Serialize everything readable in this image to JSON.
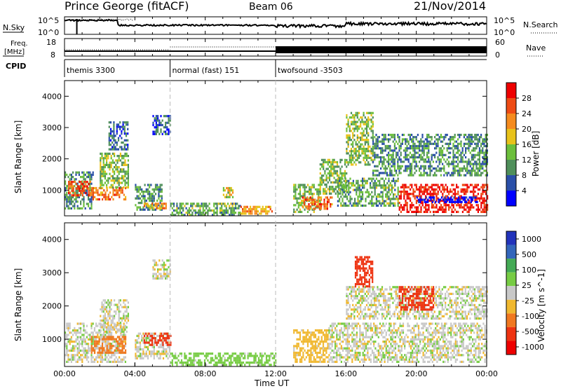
{
  "header": {
    "station": "Prince George (fitACF)",
    "beam": "Beam 06",
    "date": "21/Nov/2014"
  },
  "panels": {
    "nsky": {
      "label": "N.Sky",
      "ticks_left": [
        "10^5",
        "10^0"
      ],
      "ticks_right": [
        "10^5",
        "10^0"
      ],
      "right_label": "N.Search"
    },
    "freq": {
      "label_line1": "Freq.",
      "label_line2": "[MHz]",
      "ticks_left": [
        "18",
        "8"
      ],
      "ticks_right": [
        "60",
        "0"
      ],
      "right_label": "Nave"
    },
    "cpid": {
      "label": "CPID",
      "segments": [
        {
          "start_hour": 0,
          "end_hour": 6,
          "label": "themis 3300"
        },
        {
          "start_hour": 6,
          "end_hour": 12,
          "label": "normal (fast) 151"
        },
        {
          "start_hour": 12,
          "end_hour": 24,
          "label": "twofsound -3503"
        }
      ]
    }
  },
  "colors": {
    "power": [
      "#0000ff",
      "#2a4fa8",
      "#4f8f5a",
      "#6cbf3c",
      "#e8c21a",
      "#f58b1e",
      "#ee4b14",
      "#ee0000"
    ],
    "velocity": [
      "#2233bb",
      "#3366bb",
      "#44aa55",
      "#77cc44",
      "#c8c8c8",
      "#f0b830",
      "#f07820",
      "#ee3311",
      "#ee0000"
    ]
  },
  "chart_data": [
    {
      "type": "heatmap",
      "name": "power",
      "xlabel": "",
      "ylabel": "Slant Range [km]",
      "xlim": [
        0,
        24
      ],
      "ylim": [
        180,
        4500
      ],
      "yticks": [
        1000,
        2000,
        3000,
        4000
      ],
      "colorbar": {
        "label": "Power [dB]",
        "ticks": [
          4,
          8,
          12,
          16,
          20,
          24,
          28
        ],
        "range": [
          0,
          32
        ]
      },
      "regions": [
        {
          "t0": 0.0,
          "t1": 1.6,
          "r0": 400,
          "r1": 1600,
          "value": 10
        },
        {
          "t0": 0.2,
          "t1": 1.5,
          "r0": 800,
          "r1": 1300,
          "value": 25
        },
        {
          "t0": 1.5,
          "t1": 3.5,
          "r0": 700,
          "r1": 1100,
          "value": 24
        },
        {
          "t0": 2.0,
          "t1": 3.6,
          "r0": 1100,
          "r1": 2200,
          "value": 14
        },
        {
          "t0": 2.5,
          "t1": 3.6,
          "r0": 2300,
          "r1": 3200,
          "value": 7
        },
        {
          "t0": 4.0,
          "t1": 5.5,
          "r0": 400,
          "r1": 1200,
          "value": 10
        },
        {
          "t0": 4.5,
          "t1": 5.8,
          "r0": 450,
          "r1": 600,
          "value": 22
        },
        {
          "t0": 5.0,
          "t1": 6.0,
          "r0": 2800,
          "r1": 3400,
          "value": 6
        },
        {
          "t0": 6.0,
          "t1": 10.0,
          "r0": 200,
          "r1": 600,
          "value": 12
        },
        {
          "t0": 9.0,
          "t1": 9.6,
          "r0": 800,
          "r1": 1100,
          "value": 16
        },
        {
          "t0": 10.0,
          "t1": 11.8,
          "r0": 250,
          "r1": 500,
          "value": 21
        },
        {
          "t0": 13.0,
          "t1": 14.5,
          "r0": 300,
          "r1": 1200,
          "value": 13
        },
        {
          "t0": 13.5,
          "t1": 15.2,
          "r0": 400,
          "r1": 800,
          "value": 24
        },
        {
          "t0": 14.5,
          "t1": 16.0,
          "r0": 900,
          "r1": 2000,
          "value": 13
        },
        {
          "t0": 15.5,
          "t1": 19.0,
          "r0": 500,
          "r1": 1400,
          "value": 12
        },
        {
          "t0": 16.0,
          "t1": 17.5,
          "r0": 1800,
          "r1": 3500,
          "value": 14
        },
        {
          "t0": 17.5,
          "t1": 24.0,
          "r0": 1500,
          "r1": 2800,
          "value": 10
        },
        {
          "t0": 19.0,
          "t1": 24.0,
          "r0": 300,
          "r1": 1200,
          "value": 29
        },
        {
          "t0": 20.0,
          "t1": 23.5,
          "r0": 650,
          "r1": 800,
          "value": 0
        }
      ]
    },
    {
      "type": "heatmap",
      "name": "velocity",
      "xlabel": "Time UT",
      "ylabel": "Slant Range [km]",
      "xlim": [
        0,
        24
      ],
      "ylim": [
        180,
        4500
      ],
      "xticks": [
        "00:00",
        "04:00",
        "08:00",
        "12:00",
        "16:00",
        "20:00",
        "00:00"
      ],
      "yticks": [
        1000,
        2000,
        3000,
        4000
      ],
      "colorbar": {
        "label": "Velocity [m s^-1]",
        "ticks": [
          1000,
          500,
          100,
          25,
          -25,
          -100,
          -500,
          -1000
        ]
      },
      "regions": [
        {
          "t0": 0.0,
          "t1": 3.5,
          "r0": 300,
          "r1": 1500,
          "value": 0
        },
        {
          "t0": 1.5,
          "t1": 3.5,
          "r0": 600,
          "r1": 1100,
          "value": -300
        },
        {
          "t0": 2.0,
          "t1": 3.6,
          "r0": 1200,
          "r1": 2200,
          "value": 0
        },
        {
          "t0": 4.0,
          "t1": 6.0,
          "r0": 400,
          "r1": 1200,
          "value": 0
        },
        {
          "t0": 4.5,
          "t1": 6.0,
          "r0": 800,
          "r1": 1200,
          "value": -800
        },
        {
          "t0": 5.0,
          "t1": 6.0,
          "r0": 2800,
          "r1": 3400,
          "value": 0
        },
        {
          "t0": 6.0,
          "t1": 12.0,
          "r0": 200,
          "r1": 600,
          "value": 60
        },
        {
          "t0": 13.0,
          "t1": 15.0,
          "r0": 300,
          "r1": 1300,
          "value": -60
        },
        {
          "t0": 15.0,
          "t1": 24.0,
          "r0": 300,
          "r1": 1500,
          "value": 0
        },
        {
          "t0": 16.0,
          "t1": 24.0,
          "r0": 1600,
          "r1": 2600,
          "value": 0
        },
        {
          "t0": 16.5,
          "t1": 17.5,
          "r0": 2600,
          "r1": 3500,
          "value": -800
        },
        {
          "t0": 19.0,
          "t1": 21.0,
          "r0": 1900,
          "r1": 2600,
          "value": -700
        }
      ]
    }
  ]
}
